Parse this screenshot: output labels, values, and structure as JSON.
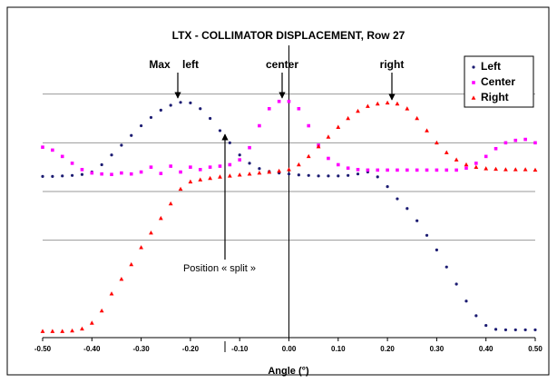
{
  "chart_data": {
    "type": "scatter",
    "title": "LTX - COLLIMATOR DISPLACEMENT, Row 27",
    "x_label": "Angle (°)",
    "annotations": {
      "max_left": "Max",
      "left": "left",
      "center": "center",
      "right": "right",
      "split": "Position « split »"
    },
    "xlim": [
      -0.5,
      0.5
    ],
    "xticks": [
      {
        "value": -0.5,
        "label": "-0.50"
      },
      {
        "value": -0.4,
        "label": "-0.40"
      },
      {
        "value": -0.3,
        "label": "-0.30"
      },
      {
        "value": -0.2,
        "label": "-0.20"
      },
      {
        "value": -0.1,
        "label": "-0.10"
      },
      {
        "value": 0,
        "label": "0.00"
      },
      {
        "value": 0.1,
        "label": "0.10"
      },
      {
        "value": 0.2,
        "label": "0.20"
      },
      {
        "value": 0.3,
        "label": "0.30"
      },
      {
        "value": 0.4,
        "label": "0.40"
      },
      {
        "value": 0.5,
        "label": "0.50"
      }
    ],
    "ylim": [
      0,
      6
    ],
    "ygrid": [
      2,
      3,
      4,
      5
    ],
    "grid": true,
    "legend": "top-right",
    "x": [
      -0.5,
      -0.48,
      -0.46,
      -0.44,
      -0.42,
      -0.4,
      -0.38,
      -0.36,
      -0.34,
      -0.32,
      -0.3,
      -0.28,
      -0.26,
      -0.24,
      -0.22,
      -0.2,
      -0.18,
      -0.16,
      -0.14,
      -0.12,
      -0.1,
      -0.08,
      -0.06,
      -0.04,
      -0.02,
      0,
      0.02,
      0.04,
      0.06,
      0.08,
      0.1,
      0.12,
      0.14,
      0.16,
      0.18,
      0.2,
      0.22,
      0.24,
      0.26,
      0.28,
      0.3,
      0.32,
      0.34,
      0.36,
      0.38,
      0.4,
      0.42,
      0.44,
      0.46,
      0.48,
      0.5
    ],
    "series": [
      {
        "name": "Left",
        "color": "#1c1c72",
        "marker": "dot",
        "values": [
          3.31,
          3.31,
          3.32,
          3.33,
          3.35,
          3.4,
          3.55,
          3.75,
          3.95,
          4.15,
          4.35,
          4.52,
          4.67,
          4.77,
          4.83,
          4.82,
          4.7,
          4.5,
          4.25,
          4.0,
          3.75,
          3.58,
          3.47,
          3.41,
          3.38,
          3.36,
          3.34,
          3.33,
          3.32,
          3.32,
          3.32,
          3.33,
          3.36,
          3.4,
          3.3,
          3.1,
          2.85,
          2.65,
          2.4,
          2.1,
          1.8,
          1.45,
          1.1,
          0.75,
          0.45,
          0.25,
          0.17,
          0.16,
          0.16,
          0.16,
          0.16
        ]
      },
      {
        "name": "Center",
        "color": "#ff00ff",
        "marker": "square",
        "values": [
          3.91,
          3.85,
          3.72,
          3.58,
          3.45,
          3.38,
          3.36,
          3.35,
          3.38,
          3.36,
          3.4,
          3.5,
          3.37,
          3.52,
          3.4,
          3.5,
          3.45,
          3.5,
          3.52,
          3.55,
          3.65,
          3.9,
          4.35,
          4.7,
          4.85,
          4.85,
          4.7,
          4.35,
          3.95,
          3.68,
          3.55,
          3.48,
          3.45,
          3.44,
          3.44,
          3.44,
          3.44,
          3.44,
          3.44,
          3.44,
          3.44,
          3.44,
          3.44,
          3.48,
          3.58,
          3.72,
          3.88,
          4.0,
          4.05,
          4.07,
          4.0
        ]
      },
      {
        "name": "Right",
        "color": "#ff0000",
        "marker": "triangle",
        "values": [
          0.13,
          0.13,
          0.13,
          0.14,
          0.18,
          0.3,
          0.55,
          0.9,
          1.2,
          1.5,
          1.85,
          2.15,
          2.45,
          2.75,
          3.05,
          3.2,
          3.24,
          3.27,
          3.3,
          3.32,
          3.34,
          3.36,
          3.38,
          3.4,
          3.42,
          3.45,
          3.55,
          3.72,
          3.92,
          4.12,
          4.32,
          4.5,
          4.65,
          4.75,
          4.8,
          4.82,
          4.8,
          4.7,
          4.5,
          4.25,
          4.0,
          3.8,
          3.65,
          3.55,
          3.5,
          3.47,
          3.46,
          3.45,
          3.45,
          3.45,
          3.44
        ]
      }
    ]
  }
}
